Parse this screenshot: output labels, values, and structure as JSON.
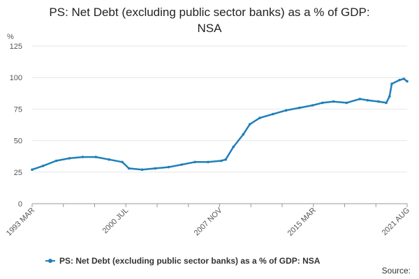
{
  "title_line1": "PS: Net Debt (excluding public sector banks) as a % of GDP:",
  "title_line2": "NSA",
  "source_label": "Source:",
  "colors": {
    "series": "#1f7fb9",
    "grid": "#e6e6e6",
    "axis": "#999999"
  },
  "chart_data": {
    "type": "line",
    "title": "PS: Net Debt (excluding public sector banks) as a % of GDP: NSA",
    "ylabel": "%",
    "xlabel": "",
    "ylim": [
      0,
      125
    ],
    "yticks": [
      0,
      25,
      50,
      75,
      100,
      125
    ],
    "xtick_labels": [
      "1993 MAR",
      "2000 JUL",
      "2007 NOV",
      "2015 MAR",
      "2021 AUG"
    ],
    "grid": true,
    "legend_position": "bottom",
    "series": [
      {
        "name": "PS: Net Debt (excluding public sector banks) as a % of GDP: NSA",
        "x": [
          "1993-03",
          "1994-01",
          "1995-01",
          "1996-01",
          "1997-01",
          "1998-01",
          "1999-01",
          "2000-01",
          "2000-07",
          "2001-07",
          "2002-07",
          "2003-07",
          "2004-07",
          "2005-07",
          "2006-07",
          "2007-07",
          "2007-11",
          "2008-06",
          "2009-03",
          "2009-09",
          "2010-06",
          "2011-06",
          "2012-06",
          "2013-06",
          "2014-06",
          "2015-03",
          "2016-01",
          "2017-01",
          "2018-01",
          "2018-08",
          "2019-06",
          "2020-01",
          "2020-04",
          "2020-06",
          "2021-01",
          "2021-05",
          "2021-08"
        ],
        "values": [
          27,
          30,
          34,
          36,
          37,
          37,
          35,
          33,
          28,
          27,
          28,
          29,
          31,
          33,
          33,
          34,
          35,
          45,
          55,
          63,
          68,
          71,
          74,
          76,
          78,
          80,
          81,
          80,
          83,
          82,
          81,
          80,
          85,
          95,
          98,
          99,
          97
        ]
      }
    ]
  }
}
